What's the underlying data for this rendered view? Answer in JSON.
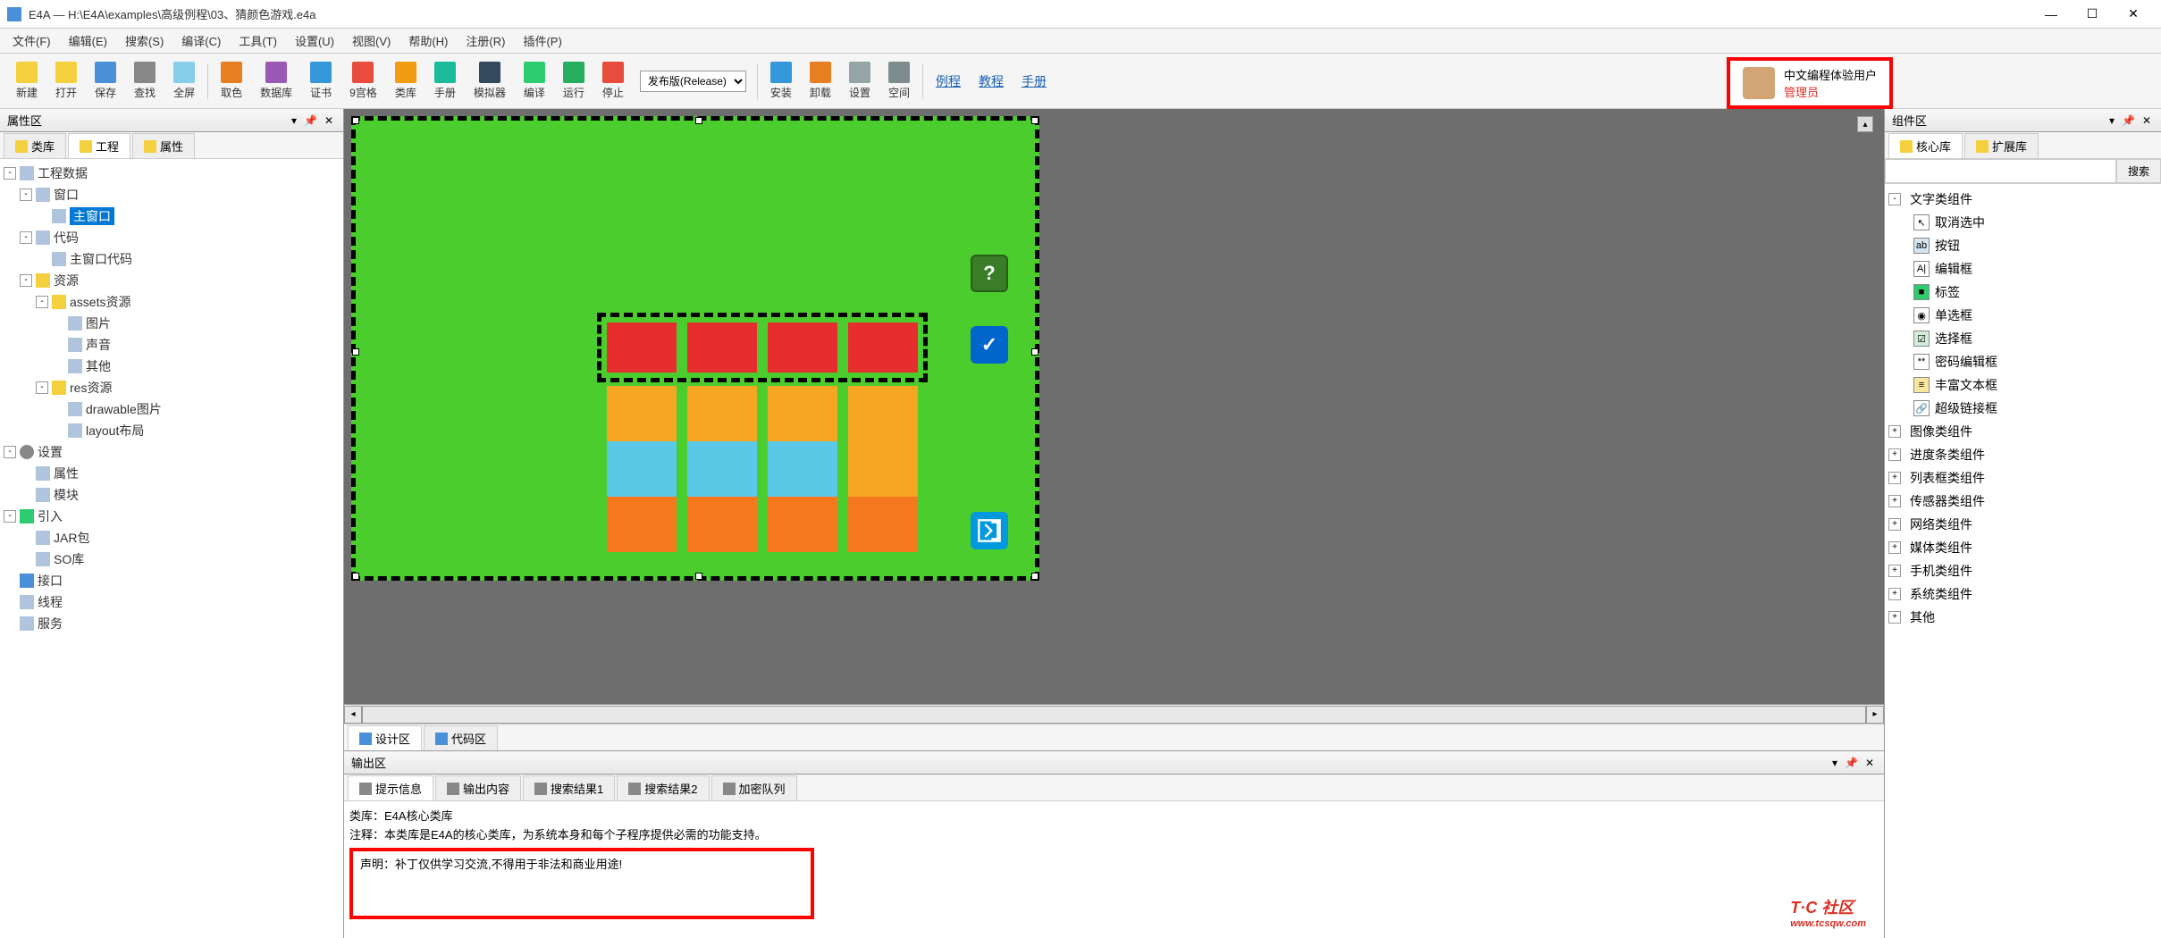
{
  "window": {
    "title": "E4A — H:\\E4A\\examples\\高级例程\\03、猜颜色游戏.e4a",
    "min": "—",
    "max": "☐",
    "close": "✕"
  },
  "menu": [
    "文件(F)",
    "编辑(E)",
    "搜索(S)",
    "编译(C)",
    "工具(T)",
    "设置(U)",
    "视图(V)",
    "帮助(H)",
    "注册(R)",
    "插件(P)"
  ],
  "toolbar": {
    "groups": [
      [
        {
          "label": "新建",
          "color": "#f4d03f"
        },
        {
          "label": "打开",
          "color": "#f4d03f"
        },
        {
          "label": "保存",
          "color": "#4a90d9"
        },
        {
          "label": "查找",
          "color": "#888"
        },
        {
          "label": "全屏",
          "color": "#87ceeb"
        }
      ],
      [
        {
          "label": "取色",
          "color": "#e67e22"
        },
        {
          "label": "数据库",
          "color": "#9b59b6"
        },
        {
          "label": "证书",
          "color": "#3498db"
        },
        {
          "label": "9宫格",
          "color": "#e74c3c"
        },
        {
          "label": "类库",
          "color": "#f39c12"
        },
        {
          "label": "手册",
          "color": "#1abc9c"
        },
        {
          "label": "模拟器",
          "color": "#34495e"
        },
        {
          "label": "编译",
          "color": "#2ecc71"
        },
        {
          "label": "运行",
          "color": "#27ae60"
        },
        {
          "label": "停止",
          "color": "#e74c3c"
        }
      ],
      [],
      [
        {
          "label": "安装",
          "color": "#3498db"
        },
        {
          "label": "卸载",
          "color": "#e67e22"
        },
        {
          "label": "设置",
          "color": "#95a5a6"
        },
        {
          "label": "空间",
          "color": "#7f8c8d"
        }
      ]
    ],
    "combo_label": "发布版(Release)",
    "links": [
      "例程",
      "教程",
      "手册"
    ],
    "user_name": "中文编程体验用户",
    "user_role": "管理员"
  },
  "left_panel": {
    "title": "属性区",
    "tabs": [
      "类库",
      "工程",
      "属性"
    ],
    "tree": [
      {
        "d": 0,
        "t": "-",
        "i": "i-file",
        "l": "工程数据"
      },
      {
        "d": 1,
        "t": "-",
        "i": "i-file",
        "l": "窗口"
      },
      {
        "d": 2,
        "t": "",
        "i": "i-file",
        "l": "主窗口",
        "sel": true
      },
      {
        "d": 1,
        "t": "-",
        "i": "i-file",
        "l": "代码"
      },
      {
        "d": 2,
        "t": "",
        "i": "i-file",
        "l": "主窗口代码"
      },
      {
        "d": 1,
        "t": "-",
        "i": "i-folder",
        "l": "资源"
      },
      {
        "d": 2,
        "t": "-",
        "i": "i-folder",
        "l": "assets资源"
      },
      {
        "d": 3,
        "t": "",
        "i": "i-file",
        "l": "图片"
      },
      {
        "d": 3,
        "t": "",
        "i": "i-file",
        "l": "声音"
      },
      {
        "d": 3,
        "t": "",
        "i": "i-file",
        "l": "其他"
      },
      {
        "d": 2,
        "t": "-",
        "i": "i-folder",
        "l": "res资源"
      },
      {
        "d": 3,
        "t": "",
        "i": "i-file",
        "l": "drawable图片"
      },
      {
        "d": 3,
        "t": "",
        "i": "i-file",
        "l": "layout布局"
      },
      {
        "d": 0,
        "t": "-",
        "i": "i-gear",
        "l": "设置"
      },
      {
        "d": 1,
        "t": "",
        "i": "i-file",
        "l": "属性"
      },
      {
        "d": 1,
        "t": "",
        "i": "i-file",
        "l": "模块"
      },
      {
        "d": 0,
        "t": "-",
        "i": "i-green",
        "l": "引入"
      },
      {
        "d": 1,
        "t": "",
        "i": "i-file",
        "l": "JAR包"
      },
      {
        "d": 1,
        "t": "",
        "i": "i-file",
        "l": "SO库"
      },
      {
        "d": 0,
        "t": "",
        "i": "i-box",
        "l": "接口"
      },
      {
        "d": 0,
        "t": "",
        "i": "i-file",
        "l": "线程"
      },
      {
        "d": 0,
        "t": "",
        "i": "i-file",
        "l": "服务"
      }
    ]
  },
  "designer": {
    "canvas_bg": "#4ccd2e",
    "dash_color": "#000000",
    "help_label": "?",
    "check_label": "✓",
    "grid": {
      "row1": [
        "#e62e2e",
        "#e62e2e",
        "#e62e2e",
        "#e62e2e"
      ],
      "row2": [
        "#f5a623",
        "#f5a623",
        "#f5a623",
        "#f5a623"
      ],
      "row3": [
        "#5ac8e6",
        "#5ac8e6",
        "#5ac8e6",
        "#f5a623"
      ],
      "row4": [
        "#f5781f",
        "#f5781f",
        "#f5781f",
        "#f5781f"
      ]
    },
    "tabs": [
      "设计区",
      "代码区"
    ]
  },
  "output": {
    "title": "输出区",
    "tabs": [
      "提示信息",
      "输出内容",
      "搜索结果1",
      "搜索结果2",
      "加密队列"
    ],
    "line1": "类库：E4A核心类库",
    "line2": "注释：本类库是E4A的核心类库，为系统本身和每个子程序提供必需的功能支持。",
    "boxed": "声明：补丁仅供学习交流,不得用于非法和商业用途!"
  },
  "right_panel": {
    "title": "组件区",
    "tabs": [
      "核心库",
      "扩展库"
    ],
    "search_btn": "搜索",
    "items": [
      {
        "t": "-",
        "l": "文字类组件",
        "children": [
          {
            "i": "↖",
            "l": "取消选中",
            "c": "#fff"
          },
          {
            "i": "ab",
            "l": "按钮",
            "c": "#d4e6f1"
          },
          {
            "i": "A|",
            "l": "编辑框",
            "c": "#fff"
          },
          {
            "i": "■",
            "l": "标签",
            "c": "#2ecc71"
          },
          {
            "i": "◉",
            "l": "单选框",
            "c": "#fff"
          },
          {
            "i": "☑",
            "l": "选择框",
            "c": "#d4edda"
          },
          {
            "i": "**",
            "l": "密码编辑框",
            "c": "#fff"
          },
          {
            "i": "≡",
            "l": "丰富文本框",
            "c": "#f9e79f"
          },
          {
            "i": "🔗",
            "l": "超级链接框",
            "c": "#fff"
          }
        ]
      },
      {
        "t": "+",
        "l": "图像类组件"
      },
      {
        "t": "+",
        "l": "进度条类组件"
      },
      {
        "t": "+",
        "l": "列表框类组件"
      },
      {
        "t": "+",
        "l": "传感器类组件"
      },
      {
        "t": "+",
        "l": "网络类组件"
      },
      {
        "t": "+",
        "l": "媒体类组件"
      },
      {
        "t": "+",
        "l": "手机类组件"
      },
      {
        "t": "+",
        "l": "系统类组件"
      },
      {
        "t": "+",
        "l": "其他"
      }
    ]
  },
  "watermark": {
    "text": "T·C 社区",
    "url": "www.tcsqw.com"
  }
}
